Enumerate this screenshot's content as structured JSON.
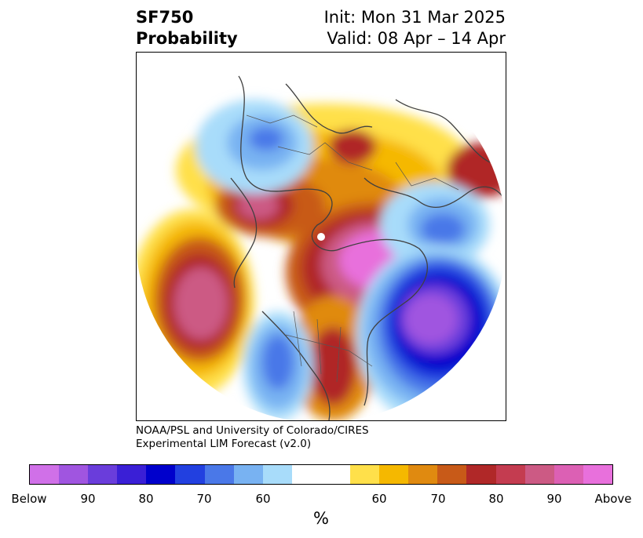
{
  "title": {
    "variable": "SF750",
    "product": "Probability",
    "init": "Init: Mon 31 Mar 2025",
    "valid": "Valid: 08 Apr – 14 Apr"
  },
  "credit": {
    "line1": "NOAA/PSL and University of Colorado/CIRES",
    "line2": "Experimental LIM Forecast (v2.0)"
  },
  "colorbar": {
    "unit_label": "%",
    "colors": [
      "#d070e8",
      "#a055e0",
      "#6a3ddb",
      "#3a1fd6",
      "#0000cc",
      "#2240e0",
      "#4a78e8",
      "#78b2f2",
      "#a8dcfa",
      "#ffffff",
      "#ffffff",
      "#ffe04a",
      "#f5b800",
      "#e08a10",
      "#c85a18",
      "#b02828",
      "#c43c50",
      "#cc5a84",
      "#dc60b4",
      "#e870dc"
    ],
    "tick_labels": [
      "Below",
      "90",
      "80",
      "70",
      "60",
      "60",
      "70",
      "80",
      "90",
      "Above"
    ]
  },
  "map": {
    "projection": "north-polar-stereographic",
    "legend_colors": {
      "high_probability_above": "#e870dc",
      "above": "#b02828",
      "below": "#0000cc",
      "high_probability_below": "#a055e0"
    }
  }
}
